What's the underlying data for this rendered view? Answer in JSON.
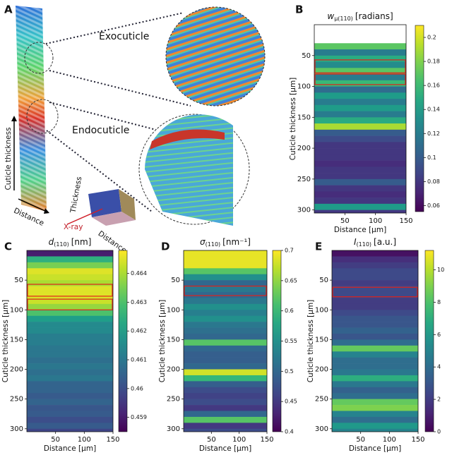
{
  "panel_a": {
    "label": "A",
    "exocuticle": "Exocuticle",
    "endocuticle": "Endocuticle",
    "thickness_axis": "Cuticle thickness",
    "distance_axis": "Distance",
    "cube_thickness": "Thickness",
    "cube_xray": "X-ray",
    "cube_distance": "Distance"
  },
  "chart_data": [
    {
      "type": "heatmap",
      "panel": "B",
      "title": {
        "symbol": "w",
        "subscript": "μ(110)",
        "unit": "[radians]"
      },
      "xlabel": "Distance [μm]",
      "ylabel": "Cuticle thickness [μm]",
      "xlim": [
        0,
        150
      ],
      "xticks": [
        50,
        100,
        150
      ],
      "ylim": [
        0,
        305
      ],
      "yticks": [
        50,
        100,
        150,
        200,
        250,
        300
      ],
      "y_inverted": true,
      "y_step": 10,
      "colormap": "viridis",
      "values": [
        null,
        null,
        null,
        0.17,
        0.12,
        0.15,
        0.13,
        0.17,
        0.12,
        0.16,
        0.11,
        0.14,
        0.12,
        0.14,
        0.12,
        0.15,
        0.19,
        0.1,
        0.09,
        0.08,
        0.08,
        0.08,
        0.075,
        0.08,
        0.08,
        0.1,
        0.08,
        0.075,
        0.08,
        0.14,
        0.08
      ],
      "clim": [
        0.055,
        0.21
      ],
      "cticks": [
        0.06,
        0.08,
        0.1,
        0.12,
        0.14,
        0.16,
        0.18,
        0.2
      ],
      "highlights": [
        [
          57,
          78
        ],
        [
          80,
          97
        ]
      ],
      "highlight_color": "#e0201b"
    },
    {
      "type": "heatmap",
      "panel": "C",
      "title": {
        "symbol": "d",
        "subscript": "(110)",
        "unit": "[nm]"
      },
      "xlabel": "Distance [μm]",
      "ylabel": "Cuticle thickness [μm]",
      "xlim": [
        0,
        150
      ],
      "xticks": [
        50,
        100,
        150
      ],
      "ylim": [
        0,
        305
      ],
      "yticks": [
        50,
        100,
        150,
        200,
        250,
        300
      ],
      "y_inverted": true,
      "y_step": 10,
      "colormap": "viridis",
      "values": [
        0.459,
        0.4625,
        0.4635,
        0.4645,
        0.4643,
        0.464,
        0.4645,
        0.4645,
        0.4643,
        0.4638,
        0.463,
        0.462,
        0.4615,
        0.4615,
        0.4612,
        0.4612,
        0.461,
        0.461,
        0.4608,
        0.461,
        0.4608,
        0.461,
        0.4605,
        0.4605,
        0.4603,
        0.4605,
        0.4602,
        0.4603,
        0.46,
        0.4603,
        0.4598
      ],
      "clim": [
        0.4585,
        0.4648
      ],
      "cticks": [
        0.459,
        0.46,
        0.461,
        0.462,
        0.463,
        0.464
      ],
      "highlights": [
        [
          57,
          77
        ],
        [
          82,
          100
        ]
      ],
      "highlight_color": "#e0201b"
    },
    {
      "type": "heatmap",
      "panel": "D",
      "title": {
        "symbol": "σ",
        "subscript": "(110)",
        "unit": "[nm⁻¹]"
      },
      "xlabel": "Distance [μm]",
      "ylabel": "Cuticle thickness [μm]",
      "xlim": [
        0,
        150
      ],
      "xticks": [
        50,
        100,
        150
      ],
      "ylim": [
        0,
        305
      ],
      "yticks": [
        50,
        100,
        150,
        200,
        250,
        300
      ],
      "y_inverted": true,
      "y_step": 10,
      "colormap": "viridis",
      "values": [
        0.69,
        0.69,
        0.69,
        0.62,
        0.55,
        0.5,
        0.52,
        0.5,
        0.52,
        0.55,
        0.53,
        0.55,
        0.52,
        0.51,
        0.5,
        0.62,
        0.5,
        0.49,
        0.49,
        0.5,
        0.68,
        0.6,
        0.49,
        0.47,
        0.46,
        0.47,
        0.45,
        0.5,
        0.62,
        0.45,
        0.47
      ],
      "clim": [
        0.4,
        0.7
      ],
      "cticks": [
        0.4,
        0.45,
        0.5,
        0.55,
        0.6,
        0.65,
        0.7
      ],
      "highlights": [
        [
          60,
          76
        ]
      ],
      "highlight_color": "#e0201b"
    },
    {
      "type": "heatmap",
      "panel": "E",
      "title": {
        "symbol": "I",
        "subscript": "(110)",
        "unit": "[a.u.]"
      },
      "xlabel": "Distance [μm]",
      "ylabel": "Cuticle thickness [μm]",
      "xlim": [
        0,
        150
      ],
      "xticks": [
        50,
        100,
        150
      ],
      "ylim": [
        0,
        305
      ],
      "yticks": [
        50,
        100,
        150,
        200,
        250,
        300
      ],
      "y_inverted": true,
      "y_step": 10,
      "colormap": "viridis",
      "values": [
        0.5,
        1.5,
        2,
        2.5,
        2.5,
        2,
        2.5,
        2.5,
        2,
        2,
        2.5,
        3,
        3,
        3.5,
        3,
        4,
        8.5,
        5,
        4,
        4,
        4.5,
        7,
        4.5,
        3.5,
        4,
        8.5,
        9,
        5,
        4,
        6,
        5
      ],
      "clim": [
        0,
        11.2
      ],
      "cticks": [
        0,
        2,
        4,
        6,
        8,
        10
      ],
      "highlights": [
        [
          62,
          78
        ]
      ],
      "highlight_color": "#e0201b"
    }
  ]
}
